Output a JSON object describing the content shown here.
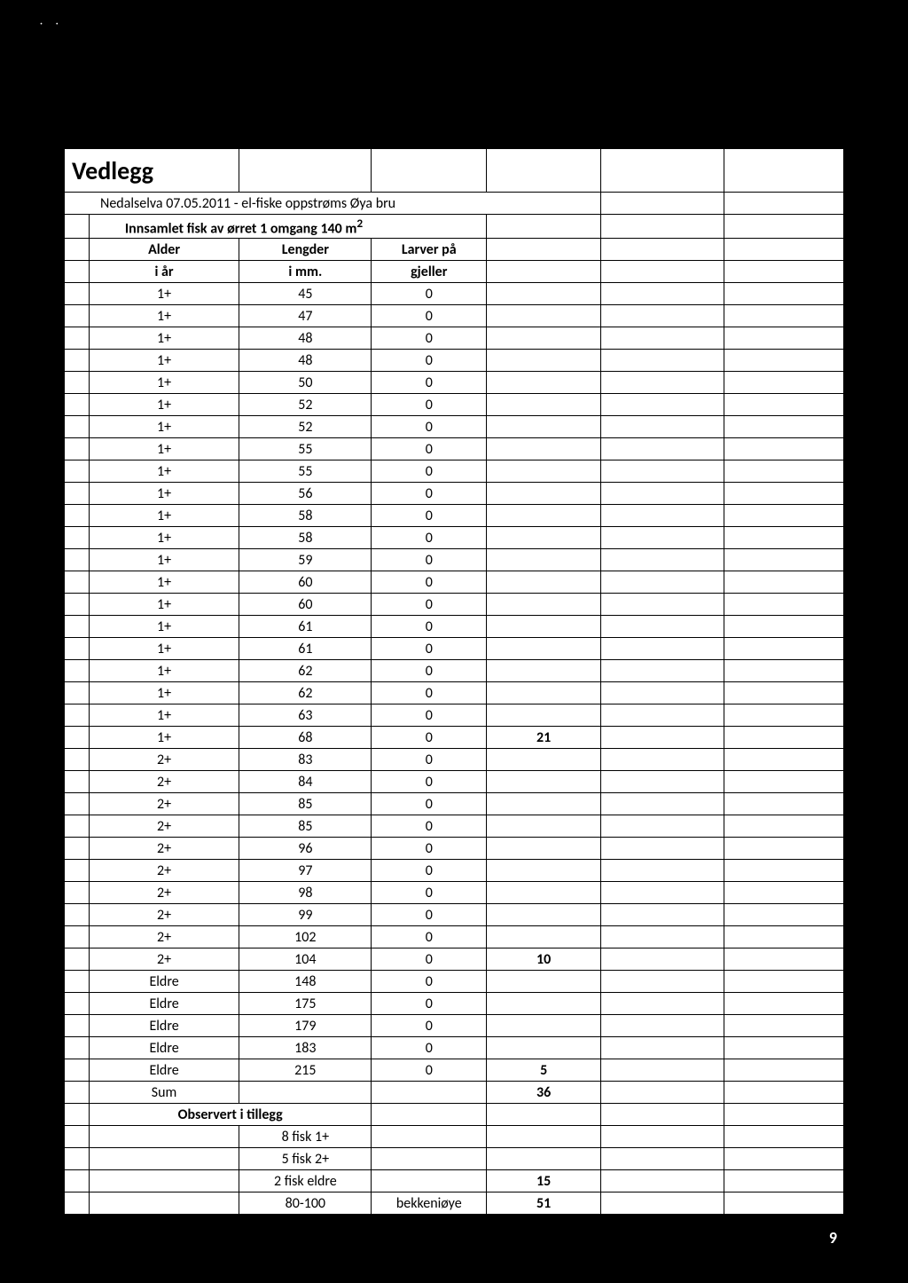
{
  "page_number": "9",
  "dots": "· ·",
  "title": "Vedlegg",
  "subtitle": "Nedalselva 07.05.2011 - el-fiske oppstrøms Øya bru",
  "innsamlet": "Innsamlet fisk av ørret 1 omgang 140 m",
  "sup2": "2",
  "headers": {
    "alder": "Alder",
    "lengder": "Lengder",
    "larver": "Larver på",
    "iaar": "i år",
    "imm": "i mm.",
    "gjeller": "gjeller"
  },
  "rows": [
    {
      "a": "1+",
      "l": "45",
      "v": "0",
      "n": ""
    },
    {
      "a": "1+",
      "l": "47",
      "v": "0",
      "n": ""
    },
    {
      "a": "1+",
      "l": "48",
      "v": "0",
      "n": ""
    },
    {
      "a": "1+",
      "l": "48",
      "v": "0",
      "n": ""
    },
    {
      "a": "1+",
      "l": "50",
      "v": "0",
      "n": ""
    },
    {
      "a": "1+",
      "l": "52",
      "v": "0",
      "n": ""
    },
    {
      "a": "1+",
      "l": "52",
      "v": "0",
      "n": ""
    },
    {
      "a": "1+",
      "l": "55",
      "v": "0",
      "n": ""
    },
    {
      "a": "1+",
      "l": "55",
      "v": "0",
      "n": ""
    },
    {
      "a": "1+",
      "l": "56",
      "v": "0",
      "n": ""
    },
    {
      "a": "1+",
      "l": "58",
      "v": "0",
      "n": ""
    },
    {
      "a": "1+",
      "l": "58",
      "v": "0",
      "n": ""
    },
    {
      "a": "1+",
      "l": "59",
      "v": "0",
      "n": ""
    },
    {
      "a": "1+",
      "l": "60",
      "v": "0",
      "n": ""
    },
    {
      "a": "1+",
      "l": "60",
      "v": "0",
      "n": ""
    },
    {
      "a": "1+",
      "l": "61",
      "v": "0",
      "n": ""
    },
    {
      "a": "1+",
      "l": "61",
      "v": "0",
      "n": ""
    },
    {
      "a": "1+",
      "l": "62",
      "v": "0",
      "n": ""
    },
    {
      "a": "1+",
      "l": "62",
      "v": "0",
      "n": ""
    },
    {
      "a": "1+",
      "l": "63",
      "v": "0",
      "n": ""
    },
    {
      "a": "1+",
      "l": "68",
      "v": "0",
      "n": "21"
    },
    {
      "a": "2+",
      "l": "83",
      "v": "0",
      "n": ""
    },
    {
      "a": "2+",
      "l": "84",
      "v": "0",
      "n": ""
    },
    {
      "a": "2+",
      "l": "85",
      "v": "0",
      "n": ""
    },
    {
      "a": "2+",
      "l": "85",
      "v": "0",
      "n": ""
    },
    {
      "a": "2+",
      "l": "96",
      "v": "0",
      "n": ""
    },
    {
      "a": "2+",
      "l": "97",
      "v": "0",
      "n": ""
    },
    {
      "a": "2+",
      "l": "98",
      "v": "0",
      "n": ""
    },
    {
      "a": "2+",
      "l": "99",
      "v": "0",
      "n": ""
    },
    {
      "a": "2+",
      "l": "102",
      "v": "0",
      "n": ""
    },
    {
      "a": "2+",
      "l": "104",
      "v": "0",
      "n": "10"
    },
    {
      "a": "Eldre",
      "l": "148",
      "v": "0",
      "n": ""
    },
    {
      "a": "Eldre",
      "l": "175",
      "v": "0",
      "n": ""
    },
    {
      "a": "Eldre",
      "l": "179",
      "v": "0",
      "n": ""
    },
    {
      "a": "Eldre",
      "l": "183",
      "v": "0",
      "n": ""
    },
    {
      "a": "Eldre",
      "l": "215",
      "v": "0",
      "n": "5"
    }
  ],
  "sum_label": "Sum",
  "sum_value": "36",
  "observert": "Observert i tillegg",
  "extra": [
    {
      "l": "8 fisk 1+",
      "v": "",
      "n": ""
    },
    {
      "l": "5 fisk 2+",
      "v": "",
      "n": ""
    },
    {
      "l": "2 fisk eldre",
      "v": "",
      "n": "15"
    },
    {
      "l": "80-100",
      "v": "bekkeniøye",
      "n": "51"
    }
  ],
  "colors": {
    "page_bg": "#000000",
    "paper_bg": "#ffffff",
    "border": "#000000",
    "text": "#000000"
  }
}
